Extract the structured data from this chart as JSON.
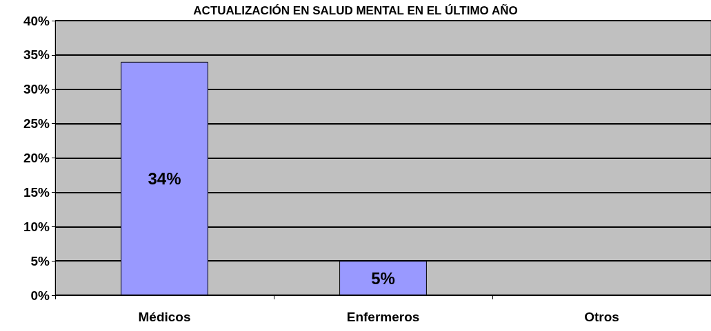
{
  "chart_data": {
    "type": "bar",
    "title": "ACTUALIZACIÓN EN SALUD MENTAL EN EL ÚLTIMO AÑO",
    "categories": [
      "Médicos",
      "Enfermeros",
      "Otros"
    ],
    "values": [
      34,
      5,
      null
    ],
    "color": "#9999ff",
    "value_labels": [
      "34%",
      "5%",
      null
    ],
    "ylim": [
      0,
      40
    ],
    "yticks": [
      {
        "value": 0,
        "label": "0%"
      },
      {
        "value": 5,
        "label": "5%"
      },
      {
        "value": 10,
        "label": "10%"
      },
      {
        "value": 15,
        "label": "15%"
      },
      {
        "value": 20,
        "label": "20%"
      },
      {
        "value": 25,
        "label": "25%"
      },
      {
        "value": 30,
        "label": "30%"
      },
      {
        "value": 35,
        "label": "35%"
      },
      {
        "value": 40,
        "label": "40%"
      }
    ],
    "grid": "y"
  }
}
